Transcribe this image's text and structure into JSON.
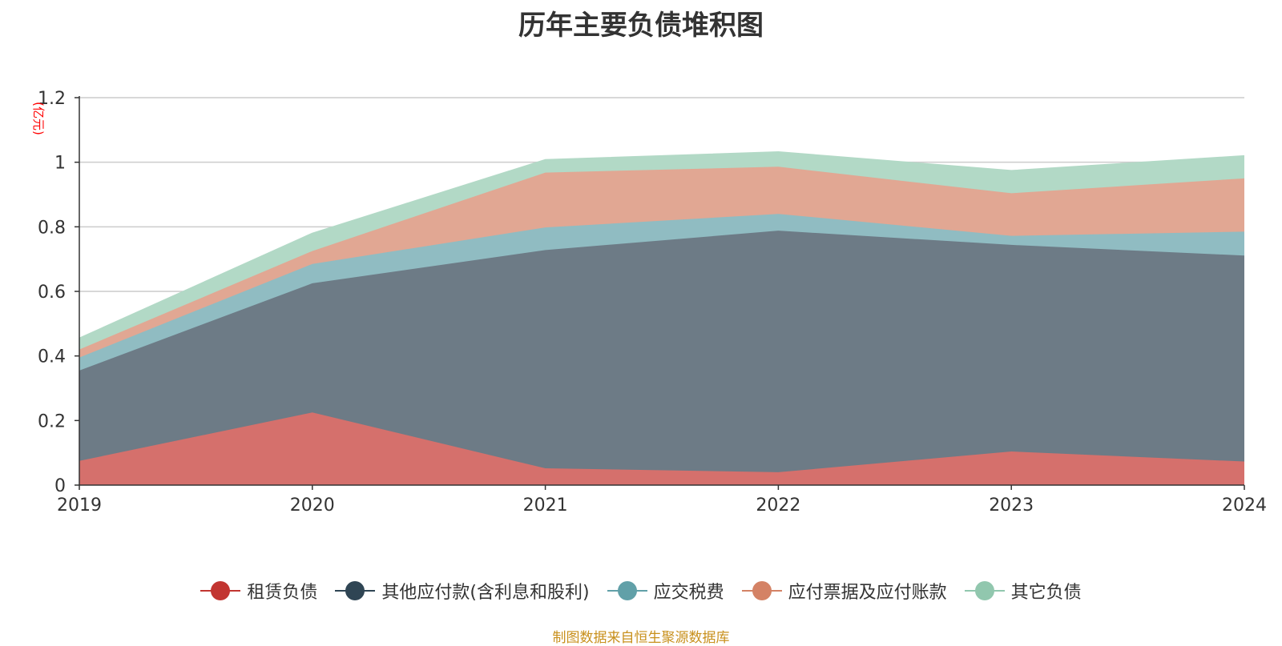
{
  "chart_data": {
    "type": "area",
    "stacked": true,
    "title": "历年主要负债堆积图",
    "ylabel": "(亿元)",
    "ylim": [
      0,
      1.2
    ],
    "yticks": [
      "0",
      "0.2",
      "0.4",
      "0.6",
      "0.8",
      "1",
      "1.2"
    ],
    "grid": true,
    "legend_position": "bottom",
    "categories": [
      "2019",
      "2020",
      "2021",
      "2022",
      "2023",
      "2024"
    ],
    "series": [
      {
        "name": "租赁负债",
        "color": "#c23531",
        "fill": "#d5706c",
        "values": [
          0.075,
          0.225,
          0.052,
          0.04,
          0.104,
          0.073
        ]
      },
      {
        "name": "其他应付款(含利息和股利)",
        "color": "#2f4554",
        "fill": "#6d7b86",
        "values": [
          0.28,
          0.4,
          0.676,
          0.748,
          0.64,
          0.638
        ]
      },
      {
        "name": "应交税费",
        "color": "#61a0a8",
        "fill": "#90bcc2",
        "values": [
          0.04,
          0.06,
          0.07,
          0.052,
          0.028,
          0.074
        ]
      },
      {
        "name": "应付票据及应付账款",
        "color": "#d48265",
        "fill": "#e1a793",
        "values": [
          0.025,
          0.04,
          0.17,
          0.146,
          0.132,
          0.165
        ]
      },
      {
        "name": "其它负债",
        "color": "#91c7ae",
        "fill": "#b2d9c6",
        "values": [
          0.035,
          0.055,
          0.04,
          0.046,
          0.07,
          0.07
        ]
      }
    ]
  },
  "source_note": "制图数据来自恒生聚源数据库"
}
